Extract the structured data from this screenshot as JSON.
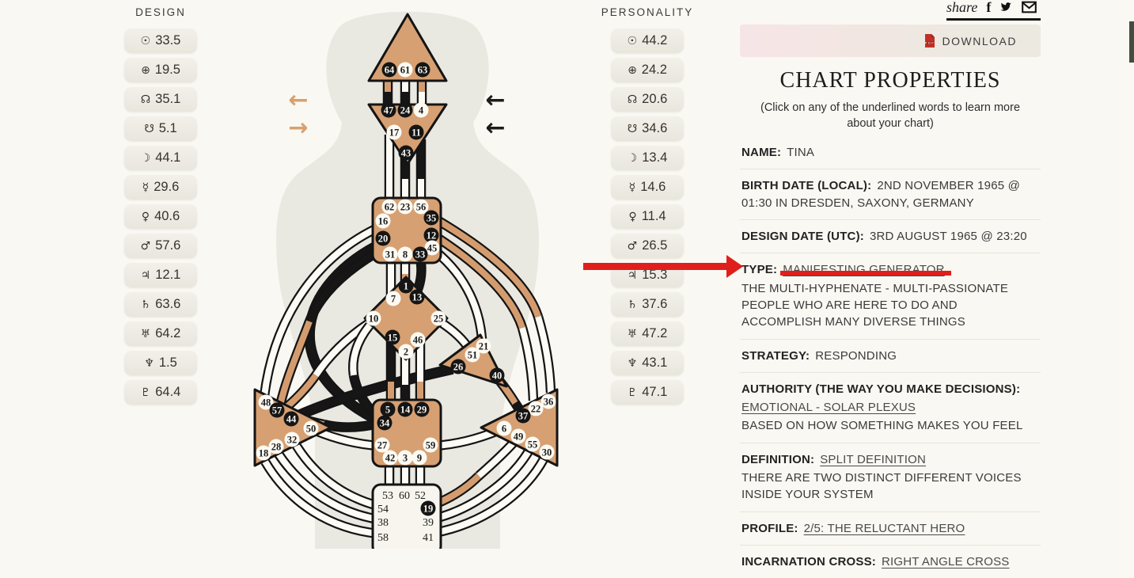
{
  "colors": {
    "background": "#faf8f2",
    "center_tan": "#d7a072",
    "design_channel_tan": "#d49c6e",
    "personality_channel_black": "#161616",
    "annotation_red": "#e01f1c",
    "download_pink": "#f6e5e6",
    "download_beige": "#ece9e1"
  },
  "share": {
    "label": "share",
    "icons": [
      {
        "name": "facebook-icon"
      },
      {
        "name": "twitter-icon"
      },
      {
        "name": "email-icon"
      }
    ]
  },
  "download": {
    "label": "DOWNLOAD",
    "icon": "pdf-icon"
  },
  "design_column": {
    "header": "DESIGN",
    "rows": [
      {
        "glyph": "☉",
        "planet": "sun",
        "value": "33.5"
      },
      {
        "glyph": "⊕",
        "planet": "earth",
        "value": "19.5"
      },
      {
        "glyph": "☊",
        "planet": "north-node",
        "value": "35.1"
      },
      {
        "glyph": "☋",
        "planet": "south-node",
        "value": "5.1"
      },
      {
        "glyph": "☽",
        "planet": "moon",
        "value": "44.1"
      },
      {
        "glyph": "☿",
        "planet": "mercury",
        "value": "29.6"
      },
      {
        "glyph": "♀",
        "planet": "venus",
        "value": "40.6"
      },
      {
        "glyph": "♂",
        "planet": "mars",
        "value": "57.6"
      },
      {
        "glyph": "♃",
        "planet": "jupiter",
        "value": "12.1"
      },
      {
        "glyph": "♄",
        "planet": "saturn",
        "value": "63.6"
      },
      {
        "glyph": "♅",
        "planet": "uranus",
        "value": "64.2"
      },
      {
        "glyph": "♆",
        "planet": "neptune",
        "value": "1.5"
      },
      {
        "glyph": "♇",
        "planet": "pluto",
        "value": "64.4"
      }
    ]
  },
  "personality_column": {
    "header": "PERSONALITY",
    "rows": [
      {
        "glyph": "☉",
        "planet": "sun",
        "value": "44.2"
      },
      {
        "glyph": "⊕",
        "planet": "earth",
        "value": "24.2"
      },
      {
        "glyph": "☊",
        "planet": "north-node",
        "value": "20.6"
      },
      {
        "glyph": "☋",
        "planet": "south-node",
        "value": "34.6"
      },
      {
        "glyph": "☽",
        "planet": "moon",
        "value": "13.4"
      },
      {
        "glyph": "☿",
        "planet": "mercury",
        "value": "14.6"
      },
      {
        "glyph": "♀",
        "planet": "venus",
        "value": "11.4"
      },
      {
        "glyph": "♂",
        "planet": "mars",
        "value": "26.5"
      },
      {
        "glyph": "♃",
        "planet": "jupiter",
        "value": "15.3"
      },
      {
        "glyph": "♄",
        "planet": "saturn",
        "value": "37.6"
      },
      {
        "glyph": "♅",
        "planet": "uranus",
        "value": "47.2"
      },
      {
        "glyph": "♆",
        "planet": "neptune",
        "value": "43.1"
      },
      {
        "glyph": "♇",
        "planet": "pluto",
        "value": "47.1"
      }
    ]
  },
  "chart_properties": {
    "title": "CHART PROPERTIES",
    "subtitle": "(Click on any of the underlined words to learn more about your chart)",
    "rows": [
      {
        "label": "NAME:",
        "value": "TINA"
      },
      {
        "label": "BIRTH DATE (LOCAL):",
        "value": "2ND NOVEMBER 1965 @ 01:30 IN DRESDEN, SAXONY, GERMANY"
      },
      {
        "label": "DESIGN DATE (UTC):",
        "value": "3RD AUGUST 1965 @ 23:20"
      },
      {
        "label": "TYPE:",
        "link": "MANIFESTING GENERATOR",
        "desc": "THE MULTI-HYPHENATE - MULTI-PASSIONATE PEOPLE WHO ARE HERE TO DO AND ACCOMPLISH MANY DIVERSE THINGS"
      },
      {
        "label": "STRATEGY:",
        "value": "RESPONDING"
      },
      {
        "label": "AUTHORITY (THE WAY YOU MAKE DECISIONS):",
        "link": "EMOTIONAL - SOLAR PLEXUS",
        "desc": "BASED ON HOW SOMETHING MAKES YOU FEEL",
        "link_block": true
      },
      {
        "label": "DEFINITION:",
        "link": "SPLIT DEFINITION",
        "desc": "THERE ARE TWO DISTINCT DIFFERENT VOICES INSIDE YOUR SYSTEM"
      },
      {
        "label": "PROFILE:",
        "link": "2/5: THE RELUCTANT HERO"
      },
      {
        "label": "INCARNATION CROSS:",
        "link": "RIGHT ANGLE CROSS"
      }
    ]
  },
  "bodygraph": {
    "arrows": {
      "left_top": "←",
      "left_bottom": "→",
      "right_top": "←",
      "right_bottom": "←"
    },
    "centers": {
      "head": {
        "gates": [
          {
            "num": "64",
            "state": "active"
          },
          {
            "num": "61",
            "state": "open"
          },
          {
            "num": "63",
            "state": "active"
          }
        ]
      },
      "ajna": {
        "gates": [
          {
            "num": "47",
            "state": "active"
          },
          {
            "num": "24",
            "state": "active"
          },
          {
            "num": "4",
            "state": "open"
          },
          {
            "num": "17",
            "state": "open"
          },
          {
            "num": "11",
            "state": "active"
          },
          {
            "num": "43",
            "state": "active"
          }
        ]
      },
      "throat": {
        "gates": [
          {
            "num": "62",
            "state": "open"
          },
          {
            "num": "23",
            "state": "open"
          },
          {
            "num": "56",
            "state": "open"
          },
          {
            "num": "16",
            "state": "open"
          },
          {
            "num": "20",
            "state": "active"
          },
          {
            "num": "35",
            "state": "active"
          },
          {
            "num": "12",
            "state": "active"
          },
          {
            "num": "45",
            "state": "open"
          },
          {
            "num": "31",
            "state": "open"
          },
          {
            "num": "8",
            "state": "open"
          },
          {
            "num": "33",
            "state": "active"
          }
        ]
      },
      "g": {
        "gates": [
          {
            "num": "1",
            "state": "active"
          },
          {
            "num": "13",
            "state": "active"
          },
          {
            "num": "7",
            "state": "open"
          },
          {
            "num": "10",
            "state": "open"
          },
          {
            "num": "25",
            "state": "open"
          },
          {
            "num": "15",
            "state": "active"
          },
          {
            "num": "46",
            "state": "open"
          },
          {
            "num": "2",
            "state": "open"
          }
        ]
      },
      "will": {
        "gates": [
          {
            "num": "21",
            "state": "open"
          },
          {
            "num": "51",
            "state": "open"
          },
          {
            "num": "26",
            "state": "active"
          },
          {
            "num": "40",
            "state": "active"
          }
        ]
      },
      "solar": {
        "gates": [
          {
            "num": "36",
            "state": "open"
          },
          {
            "num": "22",
            "state": "open"
          },
          {
            "num": "37",
            "state": "active"
          },
          {
            "num": "6",
            "state": "open"
          },
          {
            "num": "49",
            "state": "open"
          },
          {
            "num": "55",
            "state": "open"
          },
          {
            "num": "30",
            "state": "open"
          }
        ]
      },
      "spleen": {
        "gates": [
          {
            "num": "48",
            "state": "open"
          },
          {
            "num": "57",
            "state": "active"
          },
          {
            "num": "44",
            "state": "active"
          },
          {
            "num": "50",
            "state": "open"
          },
          {
            "num": "32",
            "state": "open"
          },
          {
            "num": "28",
            "state": "open"
          },
          {
            "num": "18",
            "state": "open"
          }
        ]
      },
      "sacral": {
        "gates": [
          {
            "num": "5",
            "state": "active"
          },
          {
            "num": "14",
            "state": "active"
          },
          {
            "num": "29",
            "state": "active"
          },
          {
            "num": "34",
            "state": "active"
          },
          {
            "num": "27",
            "state": "open"
          },
          {
            "num": "42",
            "state": "open"
          },
          {
            "num": "3",
            "state": "open"
          },
          {
            "num": "9",
            "state": "open"
          },
          {
            "num": "59",
            "state": "open"
          }
        ]
      },
      "root": {
        "gates": [
          {
            "num": "53",
            "state": "number"
          },
          {
            "num": "60",
            "state": "number"
          },
          {
            "num": "52",
            "state": "number"
          },
          {
            "num": "54",
            "state": "number"
          },
          {
            "num": "19",
            "state": "active"
          },
          {
            "num": "38",
            "state": "number"
          },
          {
            "num": "39",
            "state": "number"
          },
          {
            "num": "58",
            "state": "number"
          },
          {
            "num": "41",
            "state": "number"
          }
        ]
      }
    }
  }
}
